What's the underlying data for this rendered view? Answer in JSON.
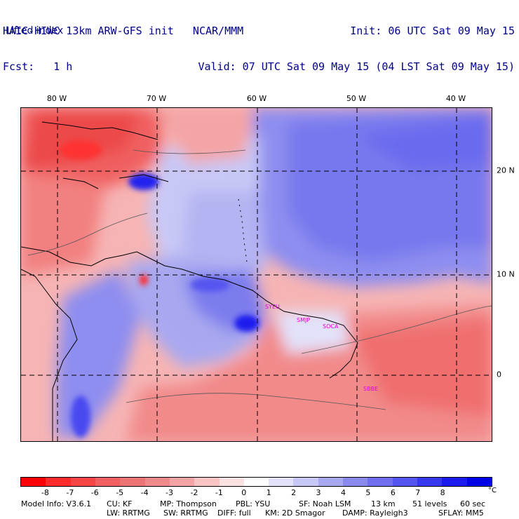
{
  "header": {
    "model_line": "HAIC-HIWC 13km ARW-GFS init   NCAR/MMM",
    "fcst_line": "Fcst:   1 h",
    "init_line": "Init: 06 UTC Sat 09 May 15",
    "valid_line": "Valid: 07 UTC Sat 09 May 15 (04 LST Sat 09 May 15)",
    "field_name": "Lifted index"
  },
  "map": {
    "lon_labels": [
      "80 W",
      "70 W",
      "60 W",
      "50 W",
      "40 W"
    ],
    "lat_labels": [
      "20 N",
      "10 N",
      "0"
    ],
    "stations": [
      "SYEU",
      "SMJP",
      "SOCA",
      "SBBE"
    ]
  },
  "colorbar": {
    "ticks": [
      "-8",
      "-7",
      "-6",
      "-5",
      "-4",
      "-3",
      "-2",
      "-1",
      "0",
      "1",
      "2",
      "3",
      "4",
      "5",
      "6",
      "7",
      "8"
    ],
    "unit": "°C",
    "colors": [
      "#ff0000",
      "#ff2b2b",
      "#f54545",
      "#f06060",
      "#ec7474",
      "#f08a8a",
      "#f4a4a4",
      "#f8c4c4",
      "#fbe2e2",
      "#ffffff",
      "#e2e2fb",
      "#c8c8f6",
      "#a8a8f0",
      "#8a8aee",
      "#6f6ff0",
      "#5555f0",
      "#3737ef",
      "#1a1aee",
      "#0000e6"
    ]
  },
  "footer": {
    "line1_left": "Model Info: V3.6.1",
    "cu": "CU: KF",
    "mp": "MP: Thompson",
    "pbl": "PBL: YSU",
    "sf": "SF: Noah LSM",
    "res": "13 km",
    "levels": "51 levels",
    "dt": "60 sec",
    "lw": "LW: RRTMG",
    "sw": "SW: RRTMG",
    "diff": "DIFF: full",
    "km": "KM: 2D Smagor",
    "damp": "DAMP: Rayleigh3",
    "sflay": "SFLAY: MM5"
  }
}
